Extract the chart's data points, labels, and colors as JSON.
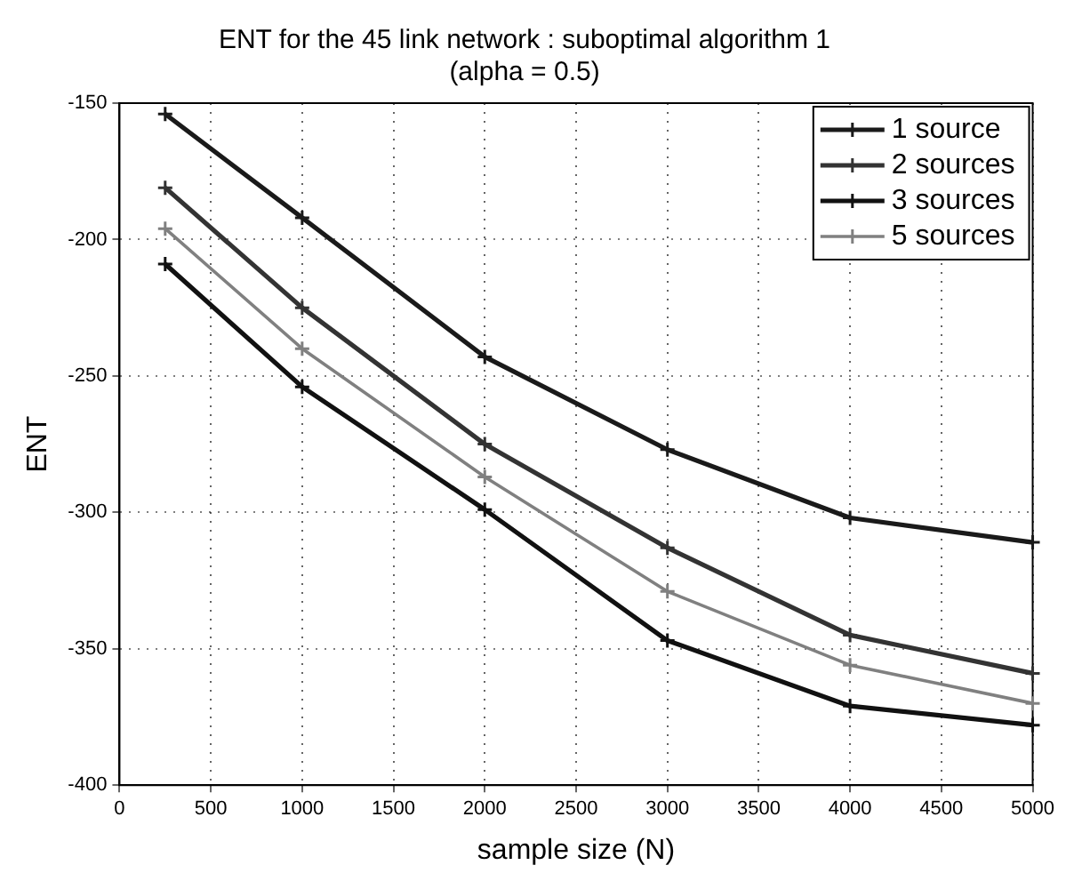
{
  "chart_data": {
    "type": "line",
    "title": "ENT for the 45 link network : suboptimal algorithm 1",
    "subtitle": "(alpha = 0.5)",
    "xlabel": "sample size (N)",
    "ylabel": "ENT",
    "x": [
      250,
      1000,
      2000,
      3000,
      4000,
      5000
    ],
    "series": [
      {
        "name": "1 source",
        "color": "#1a1a1a",
        "values": [
          -154,
          -192,
          -243,
          -277,
          -302,
          -311
        ]
      },
      {
        "name": "2 sources",
        "color": "#333333",
        "values": [
          -181,
          -225,
          -275,
          -313,
          -345,
          -359
        ]
      },
      {
        "name": "3 sources",
        "color": "#111111",
        "values": [
          -209,
          -254,
          -299,
          -347,
          -371,
          -378
        ]
      },
      {
        "name": "5 sources",
        "color": "#808080",
        "values": [
          -196,
          -240,
          -287,
          -329,
          -356,
          -370
        ]
      }
    ],
    "xlim": [
      0,
      5000
    ],
    "xticks": [
      0,
      500,
      1000,
      1500,
      2000,
      2500,
      3000,
      3500,
      4000,
      4500,
      5000
    ],
    "ylim": [
      -400,
      -150
    ],
    "yticks": [
      -400,
      -350,
      -300,
      -250,
      -200,
      -150
    ],
    "grid": true,
    "legend": "top right",
    "marker": "cross",
    "line_style": "solid"
  }
}
